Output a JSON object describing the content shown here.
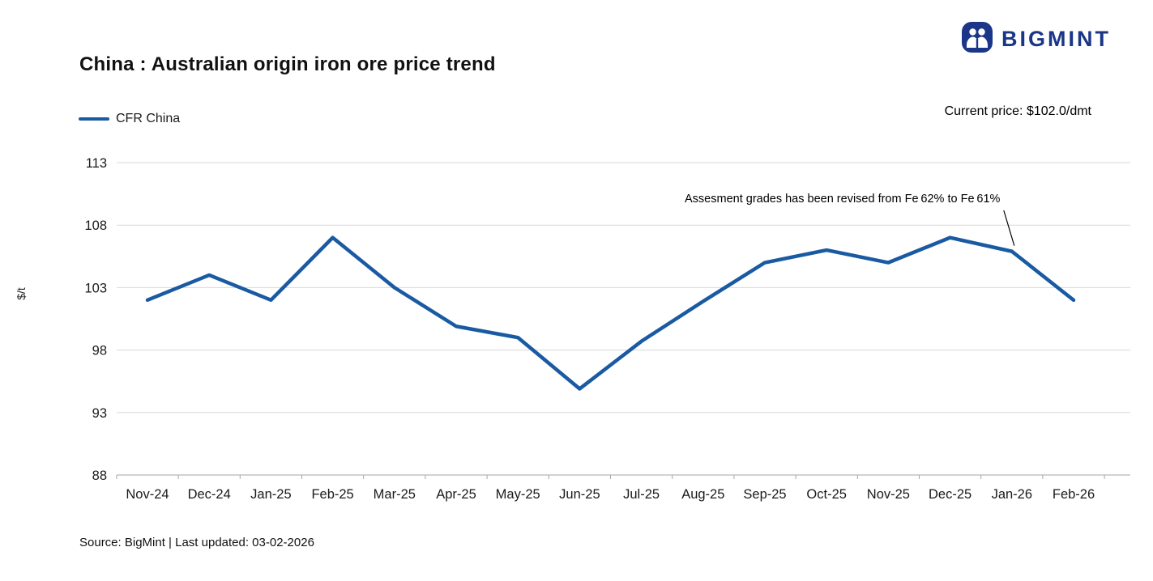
{
  "logo": {
    "text": "BIGMINT",
    "color": "#1b3688",
    "icon": "people-icon"
  },
  "header": {
    "title": "China : Australian origin iron ore price trend",
    "current_price": "Current price: $102.0/dmt"
  },
  "legend": {
    "label": "CFR China",
    "color": "#1a5aa2"
  },
  "footer": {
    "text": "Source: BigMint | Last updated: 03-02-2026"
  },
  "chart_data": {
    "type": "line",
    "title": "China : Australian origin iron ore price trend",
    "ylabel": "$/t",
    "xlabel": "",
    "ylim": [
      88,
      113
    ],
    "yticks": [
      88,
      93,
      98,
      103,
      108,
      113
    ],
    "grid": true,
    "legend_position": "top-left",
    "categories": [
      "Nov-24",
      "Dec-24",
      "Jan-25",
      "Feb-25",
      "Mar-25",
      "Apr-25",
      "May-25",
      "Jun-25",
      "Jul-25",
      "Aug-25",
      "Sep-25",
      "Oct-25",
      "Nov-25",
      "Dec-25",
      "Jan-26",
      "Feb-26"
    ],
    "series": [
      {
        "name": "CFR China",
        "color": "#1a5aa2",
        "values": [
          102.0,
          104.0,
          102.0,
          107.0,
          103.0,
          99.9,
          99.0,
          94.9,
          98.7,
          101.9,
          105.0,
          106.0,
          105.0,
          107.0,
          105.9,
          102.0
        ]
      }
    ],
    "annotation": {
      "text": "Assesment grades has been revised from Fe 62% to Fe 61%",
      "target_category": "Jan-26"
    }
  }
}
